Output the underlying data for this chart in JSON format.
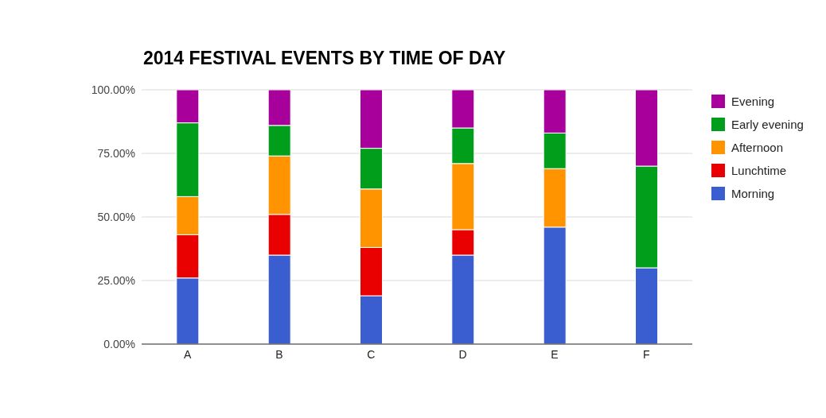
{
  "chart_data": {
    "type": "bar",
    "title": "2014 FESTIVAL EVENTS BY TIME OF DAY",
    "categories": [
      "A",
      "B",
      "C",
      "D",
      "E",
      "F"
    ],
    "stacked": true,
    "series": [
      {
        "name": "Morning",
        "color": "#3a5ecf",
        "values": [
          26,
          35,
          19,
          35,
          46,
          30
        ]
      },
      {
        "name": "Lunchtime",
        "color": "#e90000",
        "values": [
          17,
          16,
          19,
          10,
          0,
          0
        ]
      },
      {
        "name": "Afternoon",
        "color": "#ff9400",
        "values": [
          15,
          23,
          23,
          26,
          23,
          0
        ]
      },
      {
        "name": "Early evening",
        "color": "#009e1b",
        "values": [
          29,
          12,
          16,
          14,
          14,
          40
        ]
      },
      {
        "name": "Evening",
        "color": "#a8009a",
        "values": [
          13,
          14,
          23,
          15,
          17,
          30
        ]
      }
    ],
    "ylim": [
      0,
      100
    ],
    "yticks": [
      {
        "value": 0,
        "label": "0.00%"
      },
      {
        "value": 25,
        "label": "25.00%"
      },
      {
        "value": 50,
        "label": "50.00%"
      },
      {
        "value": 75,
        "label": "75.00%"
      },
      {
        "value": 100,
        "label": "100.00%"
      }
    ],
    "grid": "y",
    "legend": "right"
  }
}
